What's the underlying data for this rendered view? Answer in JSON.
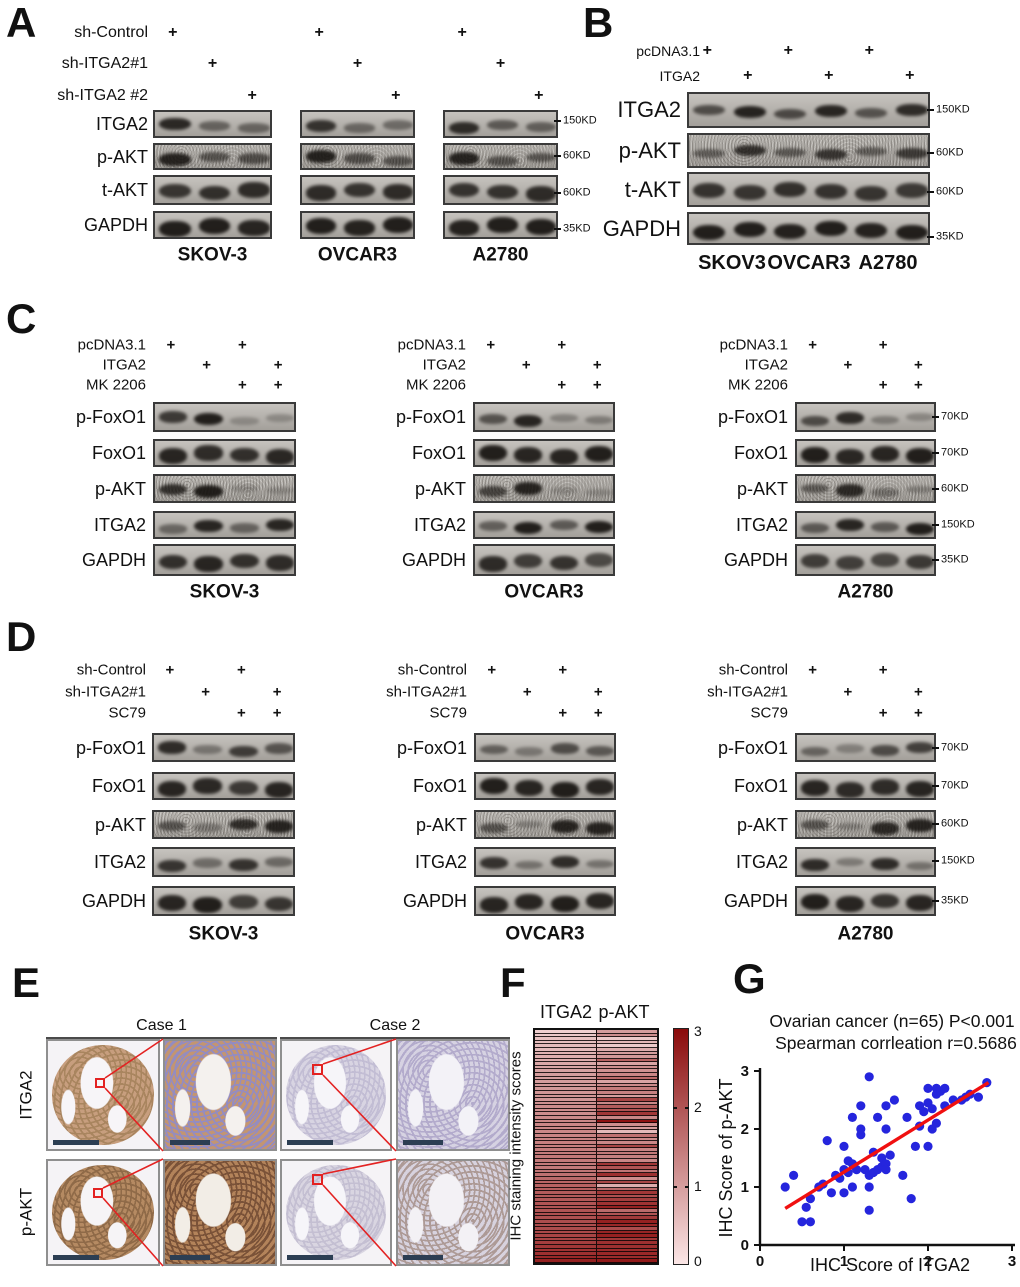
{
  "letters": {
    "A": "A",
    "B": "B",
    "C": "C",
    "D": "D",
    "E": "E",
    "F": "F",
    "G": "G"
  },
  "symbols": {
    "plus": "+"
  },
  "panel_A": {
    "treatments": [
      {
        "label": "sh-Control",
        "plus": [
          1,
          0,
          0
        ]
      },
      {
        "label": "sh-ITGA2#1",
        "plus": [
          0,
          1,
          0
        ]
      },
      {
        "label": "sh-ITGA2 #2",
        "plus": [
          0,
          0,
          1
        ]
      }
    ],
    "rows": [
      {
        "label": "ITGA2",
        "marker": "150KD",
        "bands": [
          [
            0.88,
            0.42,
            0.4
          ],
          [
            0.8,
            0.38,
            0.36
          ],
          [
            0.85,
            0.5,
            0.45
          ]
        ]
      },
      {
        "label": "p-AKT",
        "marker": "60KD",
        "noisy": true,
        "bands": [
          [
            0.9,
            0.5,
            0.55
          ],
          [
            0.92,
            0.55,
            0.5
          ],
          [
            0.9,
            0.5,
            0.48
          ]
        ]
      },
      {
        "label": "t-AKT",
        "marker": "60KD",
        "thick": true,
        "bands": [
          [
            0.78,
            0.82,
            0.85
          ],
          [
            0.85,
            0.8,
            0.85
          ],
          [
            0.8,
            0.8,
            0.85
          ]
        ]
      },
      {
        "label": "GAPDH",
        "marker": "35KD",
        "thick": true,
        "bands": [
          [
            0.95,
            0.95,
            0.9
          ],
          [
            0.95,
            0.92,
            0.95
          ],
          [
            0.92,
            0.95,
            0.95
          ]
        ]
      }
    ],
    "groups": [
      "SKOV-3",
      "OVCAR3",
      "A2780"
    ]
  },
  "panel_B": {
    "treatments": [
      {
        "label": "pcDNA3.1",
        "plus": [
          1,
          0,
          1,
          0,
          1,
          0
        ]
      },
      {
        "label": "ITGA2",
        "plus": [
          0,
          1,
          0,
          1,
          0,
          1
        ]
      }
    ],
    "rows": [
      {
        "label": "ITGA2",
        "marker": "150KD",
        "bands": [
          [
            0.6,
            0.92,
            0.62,
            0.9,
            0.55,
            0.85
          ]
        ]
      },
      {
        "label": "p-AKT",
        "marker": "60KD",
        "noisy": true,
        "bands": [
          [
            0.4,
            0.8,
            0.45,
            0.75,
            0.42,
            0.7
          ]
        ]
      },
      {
        "label": "t-AKT",
        "marker": "60KD",
        "thick": true,
        "bands": [
          [
            0.8,
            0.78,
            0.82,
            0.8,
            0.78,
            0.75
          ]
        ]
      },
      {
        "label": "GAPDH",
        "marker": "35KD",
        "thick": true,
        "bands": [
          [
            0.95,
            0.95,
            0.93,
            0.95,
            0.92,
            0.95
          ]
        ]
      }
    ],
    "groups": [
      "SKOV3",
      "OVCAR3",
      "A2780"
    ]
  },
  "panel_C": {
    "treatments": [
      {
        "label": "pcDNA3.1",
        "plus": [
          1,
          0,
          1,
          0
        ]
      },
      {
        "label": "ITGA2",
        "plus": [
          0,
          1,
          0,
          1
        ]
      },
      {
        "label": "MK 2206",
        "plus": [
          0,
          0,
          1,
          1
        ]
      }
    ],
    "rows": [
      {
        "label": "p-FoxO1",
        "marker": "70KD",
        "bands": [
          [
            0.75,
            0.95,
            0.1,
            0.12
          ],
          [
            0.55,
            0.9,
            0.18,
            0.22
          ],
          [
            0.6,
            0.85,
            0.22,
            0.15
          ]
        ]
      },
      {
        "label": "FoxO1",
        "marker": "70KD",
        "thick": true,
        "bands": [
          [
            0.9,
            0.85,
            0.82,
            0.88
          ],
          [
            0.95,
            0.9,
            0.9,
            0.95
          ],
          [
            0.95,
            0.88,
            0.9,
            0.95
          ]
        ]
      },
      {
        "label": "p-AKT",
        "marker": "60KD",
        "noisy": true,
        "bands": [
          [
            0.8,
            0.95,
            0.06,
            0.06
          ],
          [
            0.62,
            0.9,
            0.05,
            0.05
          ],
          [
            0.45,
            0.85,
            0.25,
            0.15
          ]
        ]
      },
      {
        "label": "ITGA2",
        "marker": "150KD",
        "bands": [
          [
            0.38,
            0.9,
            0.42,
            0.9
          ],
          [
            0.45,
            0.95,
            0.5,
            0.95
          ],
          [
            0.5,
            0.9,
            0.5,
            0.95
          ]
        ]
      },
      {
        "label": "GAPDH",
        "marker": "35KD",
        "thick": true,
        "bands": [
          [
            0.82,
            0.9,
            0.82,
            0.85
          ],
          [
            0.85,
            0.72,
            0.8,
            0.62
          ],
          [
            0.72,
            0.7,
            0.65,
            0.75
          ]
        ]
      }
    ],
    "groups": [
      "SKOV-3",
      "OVCAR3",
      "A2780"
    ]
  },
  "panel_D": {
    "treatments": [
      {
        "label": "sh-Control",
        "plus": [
          1,
          0,
          1,
          0
        ]
      },
      {
        "label": "sh-ITGA2#1",
        "plus": [
          0,
          1,
          0,
          1
        ]
      },
      {
        "label": "SC79",
        "plus": [
          0,
          0,
          1,
          1
        ]
      }
    ],
    "rows": [
      {
        "label": "p-FoxO1",
        "marker": "70KD",
        "bands": [
          [
            0.85,
            0.28,
            0.72,
            0.55
          ],
          [
            0.45,
            0.25,
            0.6,
            0.5
          ],
          [
            0.4,
            0.2,
            0.6,
            0.7
          ]
        ]
      },
      {
        "label": "FoxO1",
        "marker": "70KD",
        "thick": true,
        "bands": [
          [
            0.9,
            0.88,
            0.75,
            0.9
          ],
          [
            0.95,
            0.9,
            0.95,
            0.9
          ],
          [
            0.9,
            0.85,
            0.85,
            0.9
          ]
        ]
      },
      {
        "label": "p-AKT",
        "marker": "60KD",
        "noisy": true,
        "bands": [
          [
            0.5,
            0.2,
            0.82,
            0.9
          ],
          [
            0.5,
            0.15,
            0.9,
            0.9
          ],
          [
            0.5,
            0.15,
            0.85,
            0.9
          ]
        ]
      },
      {
        "label": "ITGA2",
        "marker": "150KD",
        "bands": [
          [
            0.78,
            0.35,
            0.8,
            0.38
          ],
          [
            0.8,
            0.3,
            0.85,
            0.3
          ],
          [
            0.85,
            0.25,
            0.85,
            0.3
          ]
        ]
      },
      {
        "label": "GAPDH",
        "marker": "35KD",
        "thick": true,
        "bands": [
          [
            0.9,
            0.95,
            0.72,
            0.78
          ],
          [
            0.9,
            0.9,
            0.95,
            0.9
          ],
          [
            0.95,
            0.9,
            0.8,
            0.9
          ]
        ]
      }
    ],
    "groups": [
      "SKOV-3",
      "OVCAR3",
      "A2780"
    ]
  },
  "panel_E": {
    "cases": [
      "Case 1",
      "Case 2"
    ],
    "row_labels": [
      "ITGA2",
      "p-AKT"
    ],
    "images": [
      {
        "kind": "core",
        "tint": "#c79e7e",
        "nuclei": "#a9855f",
        "gap": "#f7f5f8"
      },
      {
        "kind": "zoom",
        "tint": "#c39571",
        "nuclei": "#948cc0",
        "gap": "#f4f1ee"
      },
      {
        "kind": "core",
        "tint": "#d8d4e2",
        "nuclei": "#c2bdd4",
        "gap": "#f6f5f9"
      },
      {
        "kind": "zoom",
        "tint": "#d6d2e2",
        "nuclei": "#b3abcc",
        "gap": "#f3f2f7"
      },
      {
        "kind": "core",
        "tint": "#b58a62",
        "nuclei": "#8f6a48",
        "gap": "#f6f4f6"
      },
      {
        "kind": "zoom",
        "tint": "#b3835a",
        "nuclei": "#7a5238",
        "gap": "#f2ede6"
      },
      {
        "kind": "core",
        "tint": "#d9d5e1",
        "nuclei": "#c4bfd2",
        "gap": "#f6f5f9"
      },
      {
        "kind": "zoom",
        "tint": "#d7d2de",
        "nuclei": "#ad9a96",
        "gap": "#f3f1f5"
      }
    ],
    "annotation_color": "#e32222",
    "scalebar_color": "#2c3e53"
  },
  "panel_F": {
    "headers": [
      "ITGA2",
      "p-AKT"
    ],
    "ylabel": "IHC staining intensity scores",
    "colorbar_ticks": [
      "3",
      "2",
      "1",
      "0"
    ]
  },
  "panel_G": {
    "title_line1": "Ovarian cancer (n=65) P<0.001",
    "title_line2": "Spearman corrleation r=0.5686",
    "xlabel": "IHC Score of ITGA2",
    "ylabel": "IHC Score of p-AKT",
    "xticks": [
      "0",
      "1",
      "2",
      "3"
    ],
    "yticks": [
      "0",
      "1",
      "2",
      "3"
    ]
  },
  "chart_data": [
    {
      "type": "heatmap",
      "columns": [
        "ITGA2",
        "p-AKT"
      ],
      "ylabel": "IHC staining intensity scores",
      "colorscale": {
        "min": 0,
        "max": 3,
        "light": "#fbe6e6",
        "dark": "#8a0b0b"
      },
      "legend_ticks": [
        3,
        2,
        1,
        0
      ],
      "rows": [
        [
          0.3,
          1.0
        ],
        [
          0.4,
          1.2
        ],
        [
          0.5,
          0.4
        ],
        [
          0.55,
          0.65
        ],
        [
          0.6,
          0.4
        ],
        [
          0.6,
          0.8
        ],
        [
          0.7,
          1.0
        ],
        [
          0.75,
          1.05
        ],
        [
          0.8,
          1.8
        ],
        [
          0.85,
          0.9
        ],
        [
          0.9,
          1.2
        ],
        [
          0.95,
          1.15
        ],
        [
          1.0,
          1.3
        ],
        [
          1.0,
          1.7
        ],
        [
          1.0,
          0.9
        ],
        [
          1.05,
          1.25
        ],
        [
          1.05,
          1.45
        ],
        [
          1.1,
          1.4
        ],
        [
          1.1,
          1.0
        ],
        [
          1.1,
          2.2
        ],
        [
          1.15,
          1.3
        ],
        [
          1.2,
          1.9
        ],
        [
          1.2,
          2.0
        ],
        [
          1.2,
          2.4
        ],
        [
          1.25,
          1.3
        ],
        [
          1.3,
          2.9
        ],
        [
          1.3,
          1.2
        ],
        [
          1.3,
          1.0
        ],
        [
          1.3,
          0.6
        ],
        [
          1.35,
          1.6
        ],
        [
          1.35,
          1.25
        ],
        [
          1.4,
          1.3
        ],
        [
          1.4,
          2.2
        ],
        [
          1.45,
          1.35
        ],
        [
          1.45,
          1.5
        ],
        [
          1.5,
          1.4
        ],
        [
          1.5,
          1.3
        ],
        [
          1.5,
          2.4
        ],
        [
          1.5,
          2.0
        ],
        [
          1.55,
          1.55
        ],
        [
          1.6,
          2.5
        ],
        [
          1.7,
          1.2
        ],
        [
          1.75,
          2.2
        ],
        [
          1.8,
          0.8
        ],
        [
          1.85,
          1.7
        ],
        [
          1.9,
          2.4
        ],
        [
          1.9,
          2.05
        ],
        [
          1.95,
          2.3
        ],
        [
          2.0,
          2.45
        ],
        [
          2.0,
          2.7
        ],
        [
          2.0,
          1.7
        ],
        [
          2.05,
          2.0
        ],
        [
          2.05,
          2.35
        ],
        [
          2.1,
          2.7
        ],
        [
          2.1,
          2.6
        ],
        [
          2.1,
          2.1
        ],
        [
          2.15,
          2.65
        ],
        [
          2.2,
          2.7
        ],
        [
          2.2,
          2.4
        ],
        [
          2.3,
          2.5
        ],
        [
          2.4,
          2.5
        ],
        [
          2.45,
          2.55
        ],
        [
          2.5,
          2.6
        ],
        [
          2.6,
          2.55
        ],
        [
          2.7,
          2.8
        ]
      ]
    },
    {
      "type": "scatter",
      "title_line1": "Ovarian cancer (n=65) P<0.001",
      "title_line2": "Spearman corrleation r=0.5686",
      "xlabel": "IHC Score of ITGA2",
      "ylabel": "IHC Score of p-AKT",
      "xlim": [
        0,
        3
      ],
      "ylim": [
        0,
        3
      ],
      "xticks": [
        0,
        1,
        2,
        3
      ],
      "yticks": [
        0,
        1,
        2,
        3
      ],
      "point_color": "#2525dd",
      "line_color": "#f01010",
      "trendline": {
        "x1": 0.3,
        "y1": 0.63,
        "x2": 2.72,
        "y2": 2.8
      },
      "points": [
        [
          0.3,
          1.0
        ],
        [
          0.4,
          1.2
        ],
        [
          0.5,
          0.4
        ],
        [
          0.55,
          0.65
        ],
        [
          0.6,
          0.4
        ],
        [
          0.6,
          0.8
        ],
        [
          0.7,
          1.0
        ],
        [
          0.75,
          1.05
        ],
        [
          0.8,
          1.8
        ],
        [
          0.85,
          0.9
        ],
        [
          0.9,
          1.2
        ],
        [
          0.95,
          1.15
        ],
        [
          1.0,
          1.3
        ],
        [
          1.0,
          1.7
        ],
        [
          1.0,
          0.9
        ],
        [
          1.05,
          1.25
        ],
        [
          1.05,
          1.45
        ],
        [
          1.1,
          1.4
        ],
        [
          1.1,
          1.0
        ],
        [
          1.1,
          2.2
        ],
        [
          1.15,
          1.3
        ],
        [
          1.2,
          1.9
        ],
        [
          1.2,
          2.0
        ],
        [
          1.2,
          2.4
        ],
        [
          1.25,
          1.3
        ],
        [
          1.3,
          2.9
        ],
        [
          1.3,
          1.2
        ],
        [
          1.3,
          1.0
        ],
        [
          1.3,
          0.6
        ],
        [
          1.35,
          1.6
        ],
        [
          1.35,
          1.25
        ],
        [
          1.4,
          1.3
        ],
        [
          1.4,
          2.2
        ],
        [
          1.45,
          1.35
        ],
        [
          1.45,
          1.5
        ],
        [
          1.5,
          1.4
        ],
        [
          1.5,
          1.3
        ],
        [
          1.5,
          2.4
        ],
        [
          1.5,
          2.0
        ],
        [
          1.55,
          1.55
        ],
        [
          1.6,
          2.5
        ],
        [
          1.7,
          1.2
        ],
        [
          1.75,
          2.2
        ],
        [
          1.8,
          0.8
        ],
        [
          1.85,
          1.7
        ],
        [
          1.9,
          2.4
        ],
        [
          1.9,
          2.05
        ],
        [
          1.95,
          2.3
        ],
        [
          2.0,
          2.45
        ],
        [
          2.0,
          2.7
        ],
        [
          2.0,
          1.7
        ],
        [
          2.05,
          2.0
        ],
        [
          2.05,
          2.35
        ],
        [
          2.1,
          2.7
        ],
        [
          2.1,
          2.6
        ],
        [
          2.1,
          2.1
        ],
        [
          2.15,
          2.65
        ],
        [
          2.2,
          2.7
        ],
        [
          2.2,
          2.4
        ],
        [
          2.3,
          2.5
        ],
        [
          2.4,
          2.5
        ],
        [
          2.45,
          2.55
        ],
        [
          2.5,
          2.6
        ],
        [
          2.6,
          2.55
        ],
        [
          2.7,
          2.8
        ]
      ]
    }
  ]
}
